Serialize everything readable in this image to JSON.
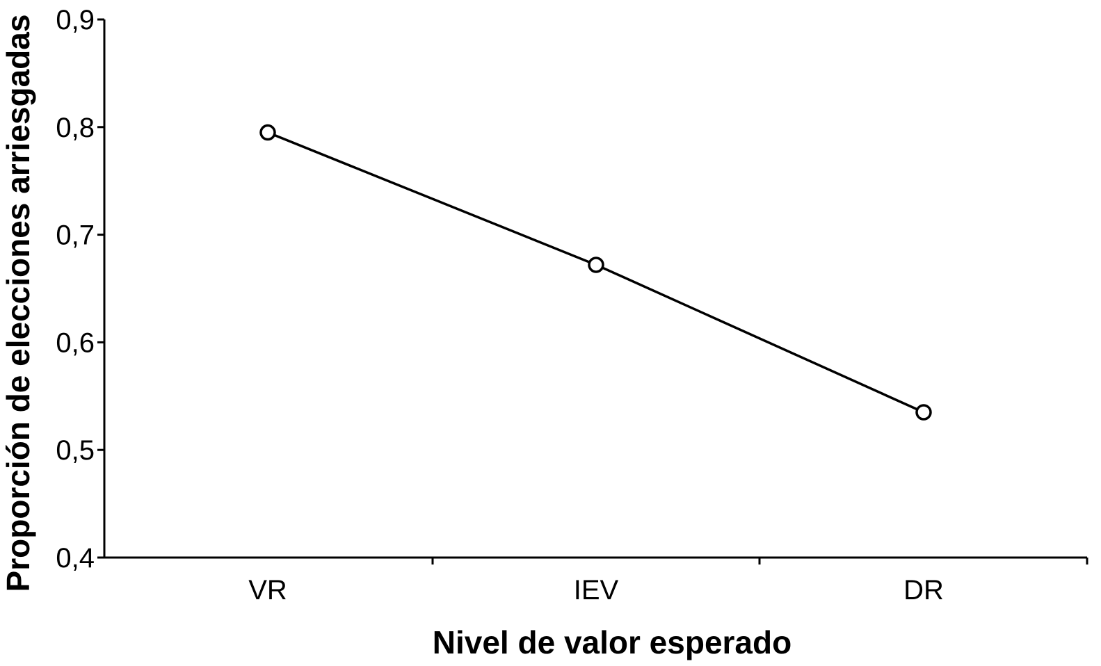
{
  "chart_data": {
    "type": "line",
    "categories": [
      "VR",
      "IEV",
      "DR"
    ],
    "series": [
      {
        "values": [
          0.795,
          0.672,
          0.535
        ]
      }
    ],
    "ylim": [
      0.4,
      0.9
    ],
    "yticks": [
      0.4,
      0.5,
      0.6,
      0.7,
      0.8,
      0.9
    ],
    "ytick_labels": [
      "0,4",
      "0,5",
      "0,6",
      "0,7",
      "0,8",
      "0,9"
    ],
    "xlabel": "Nivel de valor esperado",
    "ylabel": "Proporción de elecciones arriesgadas",
    "title": "",
    "grid": false,
    "legend": "none",
    "marker": "open-circle",
    "line_color": "#000000"
  }
}
